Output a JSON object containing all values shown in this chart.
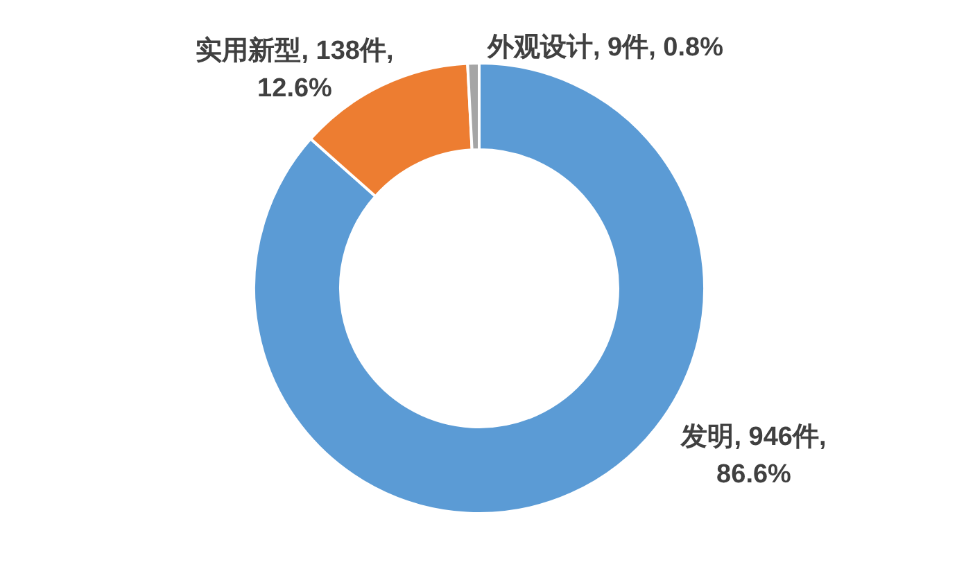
{
  "chart_data": {
    "type": "donut",
    "categories": [
      "发明",
      "实用新型",
      "外观设计"
    ],
    "values": [
      946,
      138,
      9
    ],
    "colors": [
      "#5b9bd5",
      "#ed7d31",
      "#a5a5a5"
    ],
    "value_labels": [
      "946件, 86.6%",
      "138件, 12.6%",
      "9件, 0.8%"
    ]
  }
}
